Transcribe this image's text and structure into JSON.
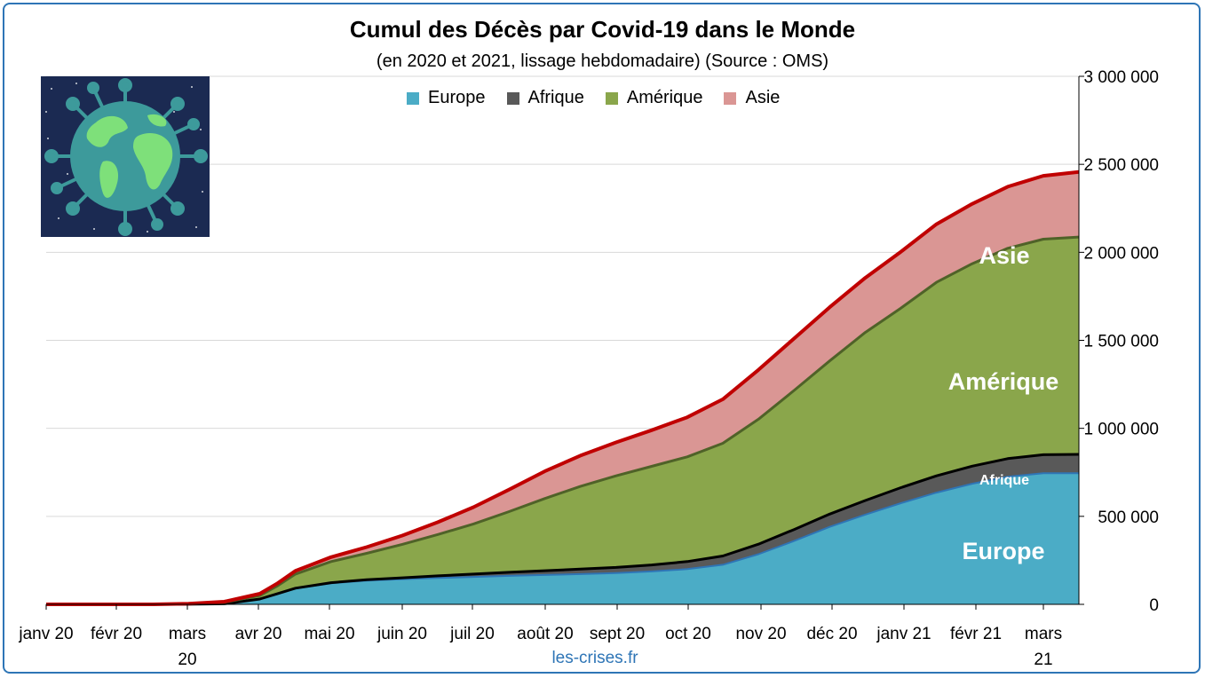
{
  "chart_data": {
    "type": "area",
    "stacked": true,
    "title": "Cumul des Décès par Covid-19 dans le Monde",
    "subtitle": "(en 2020 et 2021, lissage hebdomadaire) (Source : OMS)",
    "source_text": "les-crises.fr",
    "x_tick_labels": [
      [
        "janv 20"
      ],
      [
        "févr 20"
      ],
      [
        "mars",
        "20"
      ],
      [
        "avr 20"
      ],
      [
        "mai 20"
      ],
      [
        "juin 20"
      ],
      [
        "juil 20"
      ],
      [
        "août 20"
      ],
      [
        "sept 20"
      ],
      [
        "oct 20"
      ],
      [
        "nov 20"
      ],
      [
        "déc 20"
      ],
      [
        "janv 21"
      ],
      [
        "févr 21"
      ],
      [
        "mars",
        "21"
      ]
    ],
    "y_tick_labels": [
      "0",
      "500 000",
      "1 000 000",
      "1 500 000",
      "2 000 000",
      "2 500 000",
      "3 000 000"
    ],
    "ylim": [
      0,
      3000000
    ],
    "grid": "horizontal",
    "legend_position": "top",
    "x_months": [
      0,
      0.5,
      1,
      1.5,
      2,
      2.5,
      3,
      3.25,
      3.5,
      4,
      4.5,
      5,
      5.5,
      6,
      6.5,
      7,
      7.5,
      8,
      8.5,
      9,
      9.5,
      10,
      10.5,
      11,
      11.5,
      12,
      12.5,
      13,
      13.5,
      14,
      14.5
    ],
    "series": [
      {
        "name": "Europe",
        "color": "#4bacc6",
        "values": [
          0,
          0,
          0,
          0,
          500,
          3000,
          30000,
          60000,
          90000,
          120000,
          135000,
          143000,
          150000,
          156000,
          162000,
          167000,
          172000,
          178000,
          187000,
          200000,
          225000,
          285000,
          360000,
          440000,
          510000,
          575000,
          635000,
          685000,
          725000,
          745000,
          745000
        ]
      },
      {
        "name": "Afrique",
        "color": "#595959",
        "values": [
          0,
          0,
          0,
          0,
          0,
          0,
          500,
          1000,
          2000,
          3000,
          5000,
          8000,
          12000,
          16000,
          20000,
          24000,
          28000,
          32000,
          37000,
          43000,
          50000,
          57000,
          65000,
          73000,
          80000,
          88000,
          95000,
          100000,
          103000,
          105000,
          107000
        ]
      },
      {
        "name": "Amérique",
        "color": "#8aa64b",
        "values": [
          0,
          0,
          0,
          0,
          2000,
          8000,
          20000,
          45000,
          80000,
          120000,
          150000,
          190000,
          235000,
          285000,
          345000,
          410000,
          470000,
          520000,
          560000,
          595000,
          640000,
          710000,
          790000,
          870000,
          955000,
          1020000,
          1100000,
          1150000,
          1195000,
          1225000,
          1235000
        ]
      },
      {
        "name": "Asie",
        "color": "#da9694",
        "values": [
          0,
          0,
          0,
          0,
          1000,
          4000,
          10000,
          14000,
          18000,
          25000,
          35000,
          50000,
          70000,
          95000,
          125000,
          155000,
          175000,
          190000,
          205000,
          225000,
          250000,
          280000,
          295000,
          305000,
          310000,
          320000,
          330000,
          340000,
          350000,
          360000,
          370000
        ]
      }
    ],
    "area_labels": [
      "Asie",
      "Amérique",
      "Afrique",
      "Europe"
    ]
  }
}
